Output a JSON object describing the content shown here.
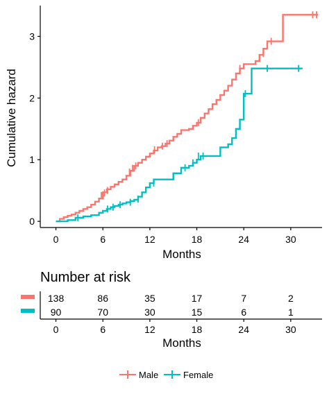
{
  "chart_data": {
    "type": "line",
    "step": true,
    "title": "",
    "xlabel": "Months",
    "ylabel": "Cumulative hazard",
    "xlim": [
      -2,
      34
    ],
    "ylim": [
      -0.1,
      3.5
    ],
    "x_ticks": [
      "0",
      "6",
      "12",
      "18",
      "24",
      "30"
    ],
    "y_ticks": [
      "0",
      "1",
      "2",
      "3"
    ],
    "grid": false,
    "series": [
      {
        "name": "Male",
        "color": "#F8766D",
        "points": [
          [
            0,
            0
          ],
          [
            0.5,
            0.04
          ],
          [
            1,
            0.07
          ],
          [
            1.5,
            0.09
          ],
          [
            2,
            0.11
          ],
          [
            2.5,
            0.14
          ],
          [
            3,
            0.17
          ],
          [
            3.5,
            0.2
          ],
          [
            4,
            0.23
          ],
          [
            4.5,
            0.27
          ],
          [
            5,
            0.32
          ],
          [
            5.5,
            0.37
          ],
          [
            6,
            0.47
          ],
          [
            6.5,
            0.52
          ],
          [
            7,
            0.56
          ],
          [
            7.5,
            0.6
          ],
          [
            8,
            0.64
          ],
          [
            8.5,
            0.68
          ],
          [
            9,
            0.74
          ],
          [
            9.5,
            0.82
          ],
          [
            10,
            0.9
          ],
          [
            10.5,
            0.95
          ],
          [
            11,
            1.0
          ],
          [
            11.5,
            1.05
          ],
          [
            12,
            1.1
          ],
          [
            12.5,
            1.15
          ],
          [
            13,
            1.2
          ],
          [
            13.5,
            1.22
          ],
          [
            14,
            1.26
          ],
          [
            14.5,
            1.31
          ],
          [
            15,
            1.37
          ],
          [
            15.5,
            1.42
          ],
          [
            16,
            1.48
          ],
          [
            17,
            1.5
          ],
          [
            17.5,
            1.55
          ],
          [
            18,
            1.6
          ],
          [
            18.5,
            1.68
          ],
          [
            19,
            1.75
          ],
          [
            19.5,
            1.82
          ],
          [
            20,
            1.9
          ],
          [
            20.5,
            1.97
          ],
          [
            21,
            2.05
          ],
          [
            21.5,
            2.12
          ],
          [
            22,
            2.2
          ],
          [
            22.5,
            2.3
          ],
          [
            23,
            2.4
          ],
          [
            23.5,
            2.48
          ],
          [
            24,
            2.55
          ],
          [
            25.5,
            2.6
          ],
          [
            26,
            2.7
          ],
          [
            26.5,
            2.8
          ],
          [
            27,
            2.92
          ],
          [
            29,
            3.35
          ],
          [
            33.5,
            3.35
          ]
        ],
        "censored": [
          [
            5.8,
            0.42
          ],
          [
            6.2,
            0.46
          ],
          [
            6.6,
            0.5
          ],
          [
            9.4,
            0.8
          ],
          [
            9.8,
            0.86
          ],
          [
            10.2,
            0.9
          ],
          [
            12.6,
            1.16
          ],
          [
            13.6,
            1.22
          ],
          [
            14.2,
            1.26
          ],
          [
            18.2,
            1.6
          ],
          [
            23.5,
            2.48
          ],
          [
            26.5,
            2.72
          ],
          [
            27.5,
            2.92
          ],
          [
            32.8,
            3.35
          ],
          [
            33.3,
            3.35
          ]
        ]
      },
      {
        "name": "Female",
        "color": "#00BFC4",
        "points": [
          [
            0,
            0
          ],
          [
            1.5,
            0.02
          ],
          [
            2.5,
            0.06
          ],
          [
            3.5,
            0.08
          ],
          [
            4.5,
            0.1
          ],
          [
            5.5,
            0.14
          ],
          [
            6,
            0.17
          ],
          [
            6.5,
            0.2
          ],
          [
            7,
            0.23
          ],
          [
            7.5,
            0.25
          ],
          [
            8,
            0.27
          ],
          [
            8.5,
            0.29
          ],
          [
            9,
            0.31
          ],
          [
            9.5,
            0.33
          ],
          [
            10,
            0.35
          ],
          [
            10.5,
            0.4
          ],
          [
            11,
            0.47
          ],
          [
            11.5,
            0.55
          ],
          [
            12,
            0.62
          ],
          [
            12.5,
            0.68
          ],
          [
            14.5,
            0.68
          ],
          [
            15,
            0.78
          ],
          [
            16,
            0.87
          ],
          [
            17,
            0.9
          ],
          [
            17.5,
            0.95
          ],
          [
            18,
            1.0
          ],
          [
            18.5,
            1.06
          ],
          [
            20.5,
            1.06
          ],
          [
            21,
            1.2
          ],
          [
            22,
            1.25
          ],
          [
            22.5,
            1.35
          ],
          [
            23,
            1.5
          ],
          [
            23.5,
            1.65
          ],
          [
            24,
            2.07
          ],
          [
            25,
            2.48
          ],
          [
            31.5,
            2.48
          ]
        ],
        "censored": [
          [
            2.8,
            0.06
          ],
          [
            6.6,
            0.2
          ],
          [
            7.3,
            0.23
          ],
          [
            8.2,
            0.27
          ],
          [
            9.5,
            0.31
          ],
          [
            10.5,
            0.36
          ],
          [
            12.5,
            0.62
          ],
          [
            16.5,
            0.87
          ],
          [
            17.5,
            0.95
          ],
          [
            18.2,
            1.06
          ],
          [
            18.8,
            1.06
          ],
          [
            24.2,
            2.07
          ],
          [
            27,
            2.48
          ],
          [
            31,
            2.48
          ]
        ]
      }
    ]
  },
  "risk_table": {
    "title": "Number at risk",
    "xlabel": "Months",
    "x_ticks": [
      "0",
      "6",
      "12",
      "18",
      "24",
      "30"
    ],
    "rows": [
      {
        "color": "#F8766D",
        "values": [
          "138",
          "86",
          "35",
          "17",
          "7",
          "2"
        ]
      },
      {
        "color": "#00BFC4",
        "values": [
          "90",
          "70",
          "30",
          "15",
          "6",
          "1"
        ]
      }
    ]
  },
  "legend": {
    "items": [
      {
        "label": "Male",
        "color": "#F8766D"
      },
      {
        "label": "Female",
        "color": "#00BFC4"
      }
    ]
  }
}
